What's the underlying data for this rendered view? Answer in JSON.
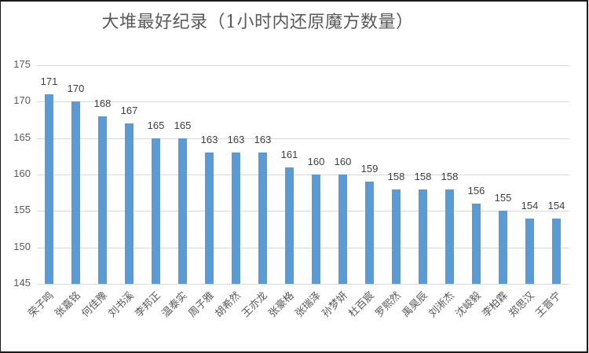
{
  "chart_data": {
    "type": "bar",
    "title": "大堆最好纪录（1小时内还原魔方数量）",
    "xlabel": "",
    "ylabel": "",
    "ylim": [
      145,
      175
    ],
    "yticks": [
      145,
      150,
      155,
      160,
      165,
      170,
      175
    ],
    "grid": true,
    "legend": null,
    "data_labels": true,
    "bar_color": "#5b9bd5",
    "categories": [
      "荣子鸣",
      "张嘉铭",
      "何佳豫",
      "刘书溪",
      "李邦正",
      "温泰实",
      "周子雅",
      "胡希然",
      "王亦龙",
      "张豪格",
      "张瑞泽",
      "孙梦妍",
      "杜百宸",
      "罗熙然",
      "禹昊辰",
      "刘淅杰",
      "沈峻毅",
      "李柏霖",
      "郑思汉",
      "王晋宁"
    ],
    "values": [
      171,
      170,
      168,
      167,
      165,
      165,
      163,
      163,
      163,
      161,
      160,
      160,
      159,
      158,
      158,
      158,
      156,
      155,
      154,
      154
    ]
  },
  "title": "大堆最好纪录（1小时内还原魔方数量）"
}
